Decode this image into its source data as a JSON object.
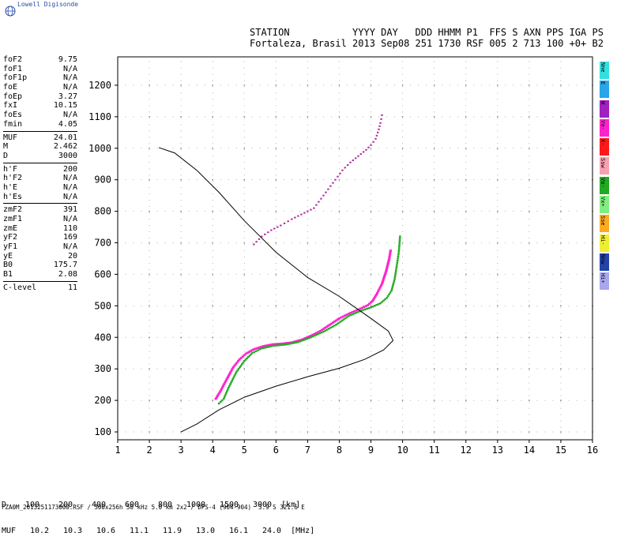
{
  "brand": {
    "name": "Lowell Digisonde"
  },
  "header": {
    "line1": "STATION           YYYY DAY   DDD HHMM P1  FFS S AXN PPS IGA PS",
    "line2": "Fortaleza, Brasil 2013 Sep08 251 1730 RSF 005 2 713 100 +0+ B2"
  },
  "param_groups": [
    [
      {
        "label": "foF2",
        "value": "9.75"
      },
      {
        "label": "foF1",
        "value": "N/A"
      },
      {
        "label": "foF1p",
        "value": "N/A"
      },
      {
        "label": "foE",
        "value": "N/A"
      },
      {
        "label": "foEp",
        "value": "3.27"
      },
      {
        "label": "fxI",
        "value": "10.15"
      },
      {
        "label": "foEs",
        "value": "N/A"
      },
      {
        "label": "fmin",
        "value": "4.05"
      }
    ],
    [
      {
        "label": "MUF",
        "value": "24.01"
      },
      {
        "label": "M",
        "value": "2.462"
      },
      {
        "label": "D",
        "value": "3000"
      }
    ],
    [
      {
        "label": "h'F",
        "value": "200"
      },
      {
        "label": "h'F2",
        "value": "N/A"
      },
      {
        "label": "h'E",
        "value": "N/A"
      },
      {
        "label": "h'Es",
        "value": "N/A"
      }
    ],
    [
      {
        "label": "zmF2",
        "value": "391"
      },
      {
        "label": "zmF1",
        "value": "N/A"
      },
      {
        "label": "zmE",
        "value": "110"
      },
      {
        "label": "yF2",
        "value": "169"
      },
      {
        "label": "yF1",
        "value": "N/A"
      },
      {
        "label": "yE",
        "value": "20"
      },
      {
        "label": "B0",
        "value": "175.7"
      },
      {
        "label": "B1",
        "value": "2.08"
      }
    ],
    [
      {
        "label": "C-level",
        "value": "11"
      }
    ]
  ],
  "legend": [
    {
      "label": "Nne",
      "color": "#33e0e0"
    },
    {
      "label": "E",
      "color": "#2aa6e6"
    },
    {
      "label": "W",
      "color": "#a020c0"
    },
    {
      "label": "Vo-",
      "color": "#ff22cc"
    },
    {
      "label": "X-",
      "color": "#ff1a1a"
    },
    {
      "label": "Ssw",
      "color": "#f8a0b0"
    },
    {
      "label": "Vo-",
      "color": "#22aa22"
    },
    {
      "label": "Vx+",
      "color": "#80ee80"
    },
    {
      "label": "Sse",
      "color": "#ffaa22"
    },
    {
      "label": "Hi-",
      "color": "#eeee33"
    },
    {
      "label": "Nnw",
      "color": "#2244aa"
    },
    {
      "label": "Hi+",
      "color": "#a8a8ee"
    }
  ],
  "muf_table": {
    "d_label": "D",
    "d_values": [
      "100",
      "200",
      "400",
      "600",
      "800",
      "1000",
      "1500",
      "3000"
    ],
    "d_unit": "[km]",
    "muf_label": "MUF",
    "muf_values": [
      "10.2",
      "10.3",
      "10.6",
      "11.1",
      "11.9",
      "13.0",
      "16.1",
      "24.0"
    ],
    "muf_unit": "[MHz]"
  },
  "footer": "FZA0M_2013251173000.RSF / 300x256h 50 kHz 5.0 km 2x2 / DPS-4 (904-904)  3.9 S 321.6 E",
  "chart_data": {
    "type": "scatter",
    "title": "",
    "xlabel": "",
    "ylabel": "",
    "xlim": [
      1,
      16
    ],
    "ylim": [
      75,
      1290
    ],
    "x_ticks": [
      1,
      2,
      3,
      4,
      5,
      6,
      7,
      8,
      9,
      10,
      11,
      12,
      13,
      14,
      15,
      16
    ],
    "y_ticks": [
      100,
      200,
      300,
      400,
      500,
      600,
      700,
      800,
      900,
      1000,
      1100,
      1200
    ],
    "grid": true,
    "colors": {
      "o_trace": "#ff22cc",
      "x_trace": "#22aa22",
      "magenta_dark": "#b02aa0",
      "profile": "#000000"
    },
    "series": [
      {
        "kind": "o-trace",
        "points": [
          [
            4.1,
            205
          ],
          [
            4.25,
            230
          ],
          [
            4.45,
            268
          ],
          [
            4.65,
            305
          ],
          [
            4.85,
            330
          ],
          [
            5.05,
            348
          ],
          [
            5.3,
            362
          ],
          [
            5.6,
            372
          ],
          [
            5.9,
            378
          ],
          [
            6.2,
            380
          ],
          [
            6.5,
            384
          ],
          [
            6.8,
            392
          ],
          [
            7.1,
            405
          ],
          [
            7.4,
            420
          ],
          [
            7.7,
            440
          ],
          [
            8.0,
            460
          ],
          [
            8.3,
            475
          ],
          [
            8.6,
            488
          ],
          [
            8.9,
            502
          ],
          [
            9.05,
            515
          ],
          [
            9.2,
            540
          ],
          [
            9.35,
            570
          ],
          [
            9.48,
            610
          ],
          [
            9.58,
            650
          ],
          [
            9.62,
            675
          ]
        ]
      },
      {
        "kind": "x-trace",
        "points": [
          [
            4.2,
            190
          ],
          [
            4.35,
            205
          ],
          [
            4.5,
            240
          ],
          [
            4.75,
            290
          ],
          [
            5.0,
            325
          ],
          [
            5.25,
            350
          ],
          [
            5.55,
            365
          ],
          [
            5.9,
            373
          ],
          [
            6.3,
            377
          ],
          [
            6.7,
            385
          ],
          [
            7.1,
            400
          ],
          [
            7.5,
            418
          ],
          [
            7.9,
            440
          ],
          [
            8.3,
            468
          ],
          [
            8.7,
            485
          ],
          [
            9.0,
            495
          ],
          [
            9.3,
            508
          ],
          [
            9.5,
            525
          ],
          [
            9.65,
            548
          ],
          [
            9.75,
            585
          ],
          [
            9.82,
            630
          ],
          [
            9.88,
            670
          ],
          [
            9.92,
            720
          ]
        ]
      },
      {
        "kind": "multi-hop",
        "points": [
          [
            5.3,
            695
          ],
          [
            5.55,
            720
          ],
          [
            5.85,
            740
          ],
          [
            6.15,
            755
          ],
          [
            6.5,
            775
          ],
          [
            6.9,
            795
          ],
          [
            7.2,
            810
          ],
          [
            7.5,
            850
          ],
          [
            7.8,
            890
          ],
          [
            8.1,
            930
          ],
          [
            8.35,
            955
          ],
          [
            8.6,
            975
          ],
          [
            8.85,
            995
          ],
          [
            9.0,
            1010
          ],
          [
            9.15,
            1030
          ],
          [
            9.25,
            1060
          ],
          [
            9.3,
            1080
          ],
          [
            9.35,
            1105
          ]
        ]
      },
      {
        "kind": "profile",
        "points": [
          [
            3.0,
            100
          ],
          [
            3.5,
            125
          ],
          [
            4.2,
            170
          ],
          [
            5.0,
            210
          ],
          [
            6.0,
            245
          ],
          [
            7.0,
            275
          ],
          [
            8.0,
            302
          ],
          [
            8.8,
            330
          ],
          [
            9.4,
            360
          ],
          [
            9.7,
            390
          ],
          [
            9.55,
            420
          ],
          [
            9.0,
            460
          ],
          [
            8.0,
            530
          ],
          [
            7.0,
            590
          ],
          [
            6.0,
            670
          ],
          [
            5.0,
            770
          ],
          [
            4.2,
            860
          ],
          [
            3.5,
            930
          ],
          [
            2.8,
            985
          ],
          [
            2.3,
            1002
          ]
        ]
      }
    ]
  }
}
